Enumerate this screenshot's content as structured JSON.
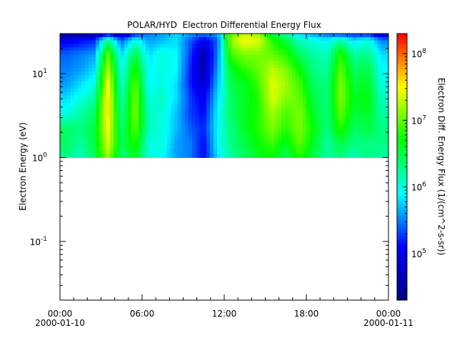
{
  "chart_data": {
    "type": "heatmap",
    "title": "POLAR/HYD  Electron Differential Energy Flux",
    "xlabel": "",
    "ylabel": "Electron Energy (eV)",
    "colorbar_label": "Electron Diff. Energy Flux (1/(cm^2-s-sr))",
    "x_range": [
      "2000-01-10 00:00",
      "2000-01-11 00:00"
    ],
    "x_ticks": [
      {
        "time": "2000-01-10 00:00",
        "label": "00:00",
        "date_label": "2000-01-10"
      },
      {
        "time": "2000-01-10 06:00",
        "label": "06:00",
        "date_label": ""
      },
      {
        "time": "2000-01-10 12:00",
        "label": "12:00",
        "date_label": ""
      },
      {
        "time": "2000-01-10 18:00",
        "label": "18:00",
        "date_label": ""
      },
      {
        "time": "2000-01-11 00:00",
        "label": "00:00",
        "date_label": "2000-01-11"
      }
    ],
    "y_scale": "log",
    "y_range": [
      0.02,
      30
    ],
    "y_ticks": [
      {
        "value": 10,
        "base": "10",
        "exp": "1"
      },
      {
        "value": 1,
        "base": "10",
        "exp": "0"
      },
      {
        "value": 0.1,
        "base": "10",
        "exp": "-1"
      }
    ],
    "z_scale": "log",
    "z_range": [
      20000.0,
      200000000.0
    ],
    "z_ticks": [
      {
        "value": 100000000.0,
        "base": "10",
        "exp": "8"
      },
      {
        "value": 10000000.0,
        "base": "10",
        "exp": "7"
      },
      {
        "value": 1000000.0,
        "base": "10",
        "exp": "6"
      },
      {
        "value": 100000.0,
        "base": "10",
        "exp": "5"
      }
    ],
    "colormap": [
      "#00007f",
      "#0000ff",
      "#00ffff",
      "#00ff00",
      "#ffff00",
      "#ff0000"
    ],
    "data_energy_range_ev": [
      1,
      30
    ],
    "energy_bins_ev": [
      1.0,
      1.5,
      2.2,
      3.3,
      5.0,
      7.5,
      11,
      17,
      25,
      30
    ],
    "time_bins_hours": [
      0,
      1,
      2,
      3,
      4,
      5,
      6,
      7,
      8,
      9,
      10,
      11,
      12,
      13,
      14,
      15,
      16,
      17,
      18,
      19,
      20,
      21,
      22,
      23
    ],
    "log10_flux": [
      [
        6.3,
        6.1,
        6.4,
        7.2,
        6.3,
        6.6,
        6.0,
        5.9,
        5.6,
        5.5,
        5.1,
        5.8,
        6.2,
        6.4,
        6.6,
        6.7,
        6.4,
        6.8,
        6.5,
        6.2,
        6.3,
        6.1,
        6.3,
        6.2
      ],
      [
        6.4,
        6.2,
        6.5,
        7.4,
        6.4,
        6.8,
        6.0,
        6.0,
        5.6,
        5.5,
        5.1,
        5.9,
        6.3,
        6.5,
        6.7,
        6.9,
        6.6,
        7.0,
        6.6,
        6.2,
        6.5,
        6.3,
        6.3,
        6.3
      ],
      [
        6.4,
        6.3,
        6.5,
        7.5,
        6.3,
        7.0,
        6.1,
        6.0,
        5.7,
        5.4,
        5.2,
        5.9,
        6.3,
        6.6,
        6.8,
        7.1,
        6.8,
        7.1,
        6.7,
        6.3,
        6.8,
        6.4,
        6.5,
        6.3
      ],
      [
        6.0,
        6.2,
        6.4,
        7.6,
        6.2,
        7.1,
        6.1,
        6.0,
        5.7,
        5.3,
        5.1,
        5.9,
        6.4,
        6.6,
        6.8,
        7.2,
        6.9,
        7.1,
        6.6,
        6.3,
        7.0,
        6.5,
        6.6,
        6.2
      ],
      [
        5.8,
        6.0,
        6.2,
        7.6,
        6.1,
        7.1,
        6.0,
        6.1,
        5.8,
        5.3,
        5.0,
        5.8,
        6.4,
        6.6,
        6.8,
        7.4,
        7.1,
        7.0,
        6.5,
        6.3,
        7.1,
        6.6,
        6.7,
        6.1
      ],
      [
        5.6,
        5.8,
        6.0,
        7.5,
        6.0,
        7.0,
        5.9,
        6.0,
        5.8,
        5.2,
        4.8,
        5.7,
        6.5,
        6.6,
        6.9,
        7.4,
        7.2,
        6.9,
        6.4,
        6.3,
        7.1,
        6.5,
        6.6,
        6.0
      ],
      [
        5.5,
        5.6,
        5.8,
        7.3,
        5.9,
        6.8,
        5.9,
        6.0,
        5.9,
        5.2,
        4.6,
        5.6,
        6.6,
        6.8,
        7.0,
        7.3,
        7.1,
        6.7,
        6.3,
        6.2,
        7.0,
        6.4,
        6.5,
        5.9
      ],
      [
        5.4,
        5.5,
        5.6,
        7.0,
        5.8,
        6.5,
        5.8,
        6.0,
        5.9,
        5.3,
        4.6,
        5.5,
        6.9,
        7.1,
        7.1,
        7.0,
        6.8,
        6.4,
        6.2,
        6.1,
        6.8,
        6.2,
        6.3,
        5.8
      ],
      [
        5.0,
        5.1,
        5.2,
        6.3,
        5.4,
        6.0,
        5.6,
        5.7,
        5.8,
        5.4,
        5.0,
        5.4,
        7.2,
        7.5,
        7.4,
        6.8,
        6.5,
        6.1,
        6.0,
        5.9,
        6.2,
        5.8,
        6.0,
        5.5
      ],
      [
        4.5,
        4.5,
        4.6,
        5.0,
        4.7,
        5.2,
        5.5,
        5.6,
        5.8,
        5.6,
        5.5,
        5.6,
        7.0,
        7.3,
        7.2,
        6.5,
        6.2,
        5.8,
        5.6,
        5.4,
        5.3,
        5.2,
        5.2,
        4.8
      ]
    ]
  }
}
